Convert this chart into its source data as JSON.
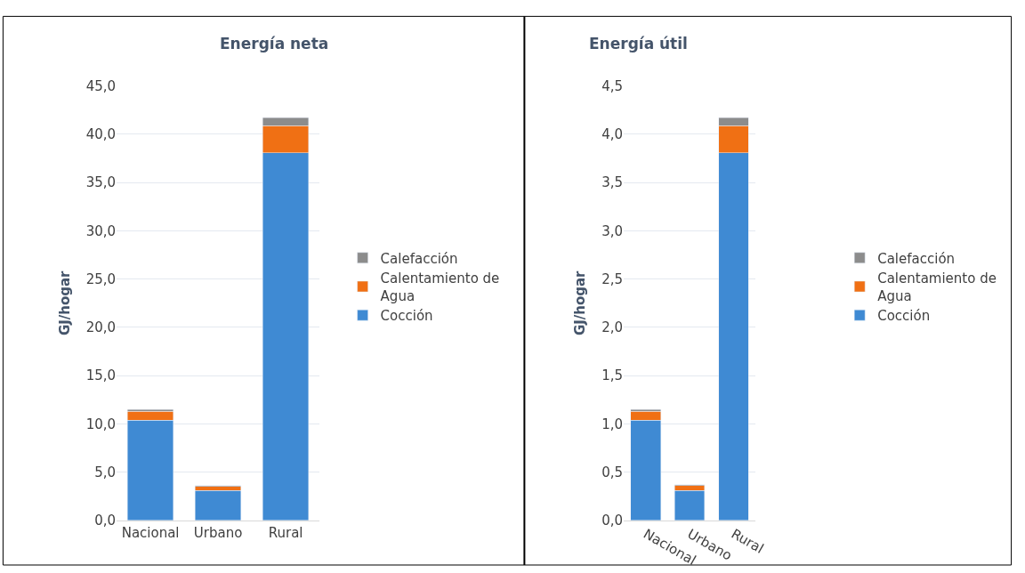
{
  "chart_data": [
    {
      "type": "bar",
      "title": "Energía neta",
      "ylabel": "GJ/hogar",
      "categories": [
        "Nacional",
        "Urbano",
        "Rural"
      ],
      "stacked": true,
      "grid": "y",
      "legend": "right",
      "series": [
        {
          "name": "Cocción",
          "color": "#3f8ad3",
          "values": [
            10.4,
            3.1,
            38.1
          ]
        },
        {
          "name": "Calentamiento de Agua",
          "color": "#f07014",
          "values": [
            0.9,
            0.4,
            2.8
          ]
        },
        {
          "name": "Calefacción",
          "color": "#8c8c8c",
          "values": [
            0.2,
            0.1,
            0.8
          ]
        }
      ],
      "ylim": [
        0,
        45
      ],
      "yticks": [
        {
          "value": 0,
          "label": "0,0"
        },
        {
          "value": 5,
          "label": "5,0"
        },
        {
          "value": 10,
          "label": "10,0"
        },
        {
          "value": 15,
          "label": "15,0"
        },
        {
          "value": 20,
          "label": "20,0"
        },
        {
          "value": 25,
          "label": "25,0"
        },
        {
          "value": 30,
          "label": "30,0"
        },
        {
          "value": 35,
          "label": "35,0"
        },
        {
          "value": 40,
          "label": "40,0"
        },
        {
          "value": 45,
          "label": "45,0"
        }
      ]
    },
    {
      "type": "bar",
      "title": "Energía útil",
      "ylabel": "GJ/hogar",
      "categories": [
        "Nacional",
        "Urbano",
        "Rural"
      ],
      "stacked": true,
      "grid": "y",
      "legend": "right",
      "series": [
        {
          "name": "Cocción",
          "color": "#3f8ad3",
          "values": [
            1.04,
            0.31,
            3.81
          ]
        },
        {
          "name": "Calentamiento de Agua",
          "color": "#f07014",
          "values": [
            0.09,
            0.05,
            0.28
          ]
        },
        {
          "name": "Calefacción",
          "color": "#8c8c8c",
          "values": [
            0.02,
            0.01,
            0.08
          ]
        }
      ],
      "ylim": [
        0,
        4.5
      ],
      "yticks": [
        {
          "value": 0,
          "label": "0,0"
        },
        {
          "value": 0.5,
          "label": "0,5"
        },
        {
          "value": 1,
          "label": "1,0"
        },
        {
          "value": 1.5,
          "label": "1,5"
        },
        {
          "value": 2,
          "label": "2,0"
        },
        {
          "value": 2.5,
          "label": "2,5"
        },
        {
          "value": 3,
          "label": "3,0"
        },
        {
          "value": 3.5,
          "label": "3,5"
        },
        {
          "value": 4,
          "label": "4,0"
        },
        {
          "value": 4.5,
          "label": "4,5"
        }
      ]
    }
  ]
}
